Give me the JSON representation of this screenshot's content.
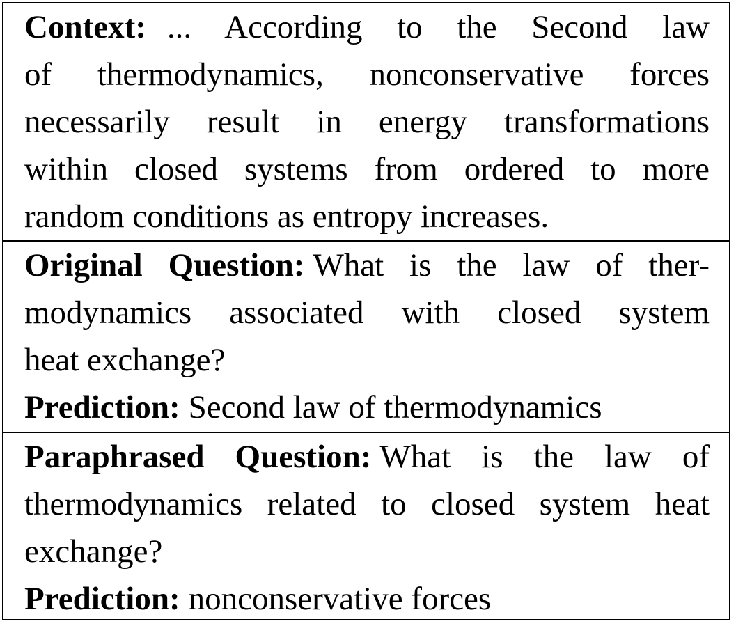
{
  "context": {
    "label": "Context:",
    "lines": [
      "... According to the Second law",
      "of thermodynamics, nonconservative forces",
      "necessarily result in energy transformations",
      "within closed systems from ordered to more",
      "random conditions as entropy increases."
    ]
  },
  "original": {
    "question_label": "Original Question:",
    "question_lines": [
      "What is the law of ther-",
      "modynamics associated with closed system",
      "heat exchange?"
    ],
    "prediction_label": "Prediction:",
    "prediction": "Second law of thermodynamics"
  },
  "paraphrased": {
    "question_label": "Paraphrased Question:",
    "question_lines": [
      "What is the law of",
      "thermodynamics related to closed system heat",
      "exchange?"
    ],
    "prediction_label": "Prediction:",
    "prediction": "nonconservative forces"
  }
}
